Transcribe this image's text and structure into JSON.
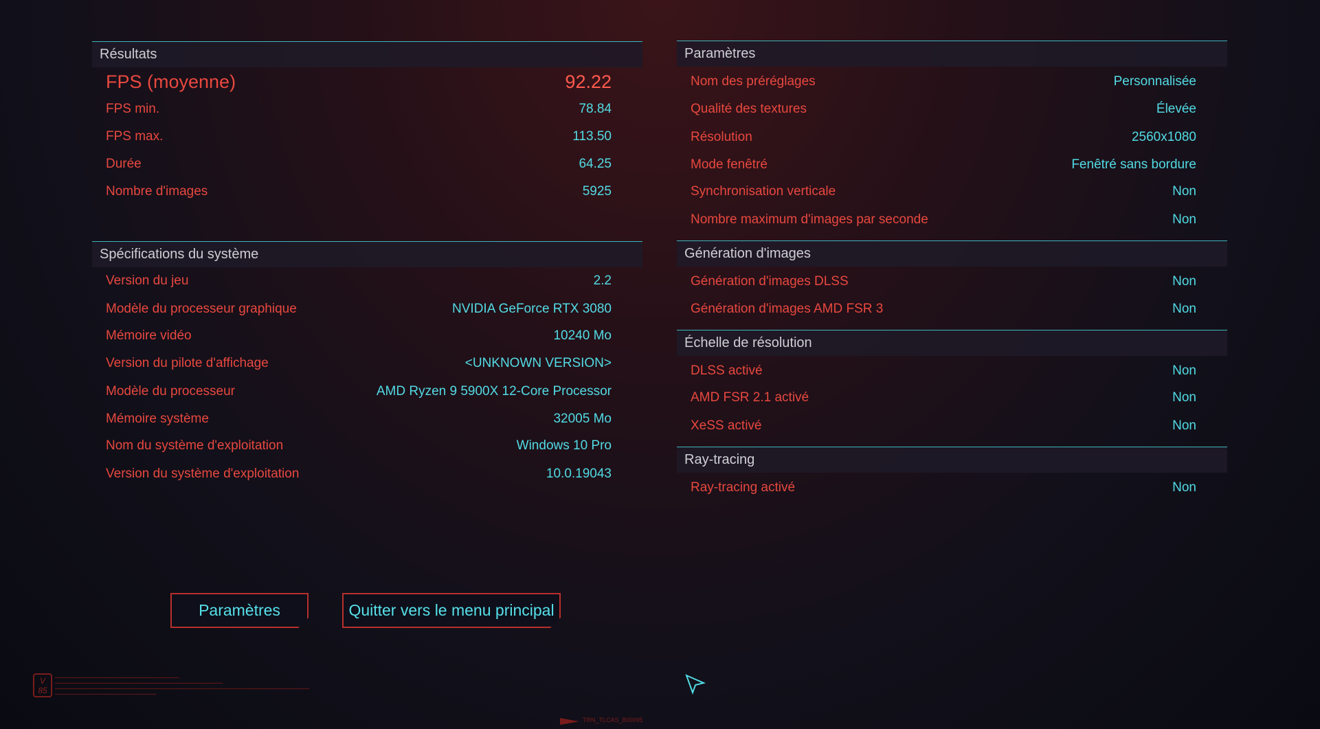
{
  "results": {
    "title": "Résultats",
    "avg_label": "FPS (moyenne)",
    "avg_value": "92.22",
    "rows": [
      {
        "label": "FPS min.",
        "value": "78.84"
      },
      {
        "label": "FPS max.",
        "value": "113.50"
      },
      {
        "label": "Durée",
        "value": "64.25"
      },
      {
        "label": "Nombre d'images",
        "value": "5925"
      }
    ]
  },
  "system": {
    "title": "Spécifications du système",
    "rows": [
      {
        "label": "Version du jeu",
        "value": "2.2"
      },
      {
        "label": "Modèle du processeur graphique",
        "value": "NVIDIA GeForce RTX 3080"
      },
      {
        "label": "Mémoire vidéo",
        "value": "10240 Mo"
      },
      {
        "label": "Version du pilote d'affichage",
        "value": "<UNKNOWN VERSION>"
      },
      {
        "label": "Modèle du processeur",
        "value": "AMD Ryzen 9 5900X 12-Core Processor"
      },
      {
        "label": "Mémoire système",
        "value": "32005 Mo"
      },
      {
        "label": "Nom du système d'exploitation",
        "value": "Windows 10 Pro"
      },
      {
        "label": "Version du système d'exploitation",
        "value": "10.0.19043"
      }
    ]
  },
  "params": {
    "title": "Paramètres",
    "rows": [
      {
        "label": "Nom des préréglages",
        "value": "Personnalisée"
      },
      {
        "label": "Qualité des textures",
        "value": "Élevée"
      },
      {
        "label": "Résolution",
        "value": "2560x1080"
      },
      {
        "label": "Mode fenêtré",
        "value": "Fenêtré sans bordure"
      },
      {
        "label": "Synchronisation verticale",
        "value": "Non"
      },
      {
        "label": "Nombre maximum d'images par seconde",
        "value": "Non"
      }
    ]
  },
  "framegen": {
    "title": "Génération d'images",
    "rows": [
      {
        "label": "Génération d'images DLSS",
        "value": "Non"
      },
      {
        "label": "Génération d'images AMD FSR 3",
        "value": "Non"
      }
    ]
  },
  "scaling": {
    "title": "Échelle de résolution",
    "rows": [
      {
        "label": "DLSS activé",
        "value": "Non"
      },
      {
        "label": "AMD FSR 2.1 activé",
        "value": "Non"
      },
      {
        "label": "XeSS activé",
        "value": "Non"
      }
    ]
  },
  "raytracing": {
    "title": "Ray-tracing",
    "rows": [
      {
        "label": "Ray-tracing activé",
        "value": "Non"
      }
    ]
  },
  "buttons": {
    "settings": "Paramètres",
    "quit": "Quitter vers le menu principal"
  },
  "footer": {
    "logo": "V 85",
    "code": "TRN_TLCAS_800095"
  },
  "colors": {
    "label": "#e8483f",
    "value": "#52dbe4",
    "accent_line": "#3fb6be",
    "button_border": "#b8302c"
  }
}
